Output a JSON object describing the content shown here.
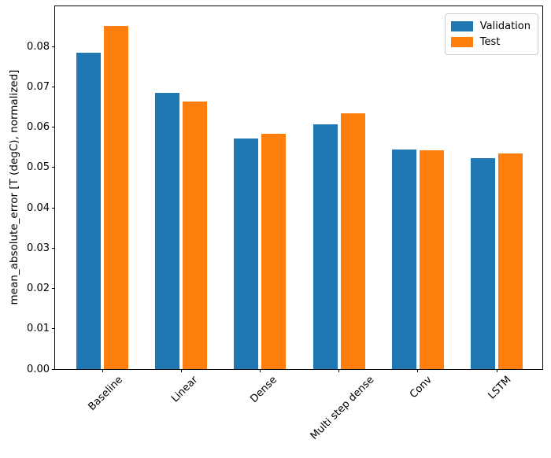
{
  "chart_data": {
    "type": "bar",
    "title": "",
    "xlabel": "",
    "ylabel": "mean_absolute_error [T (degC), normalized]",
    "categories": [
      "Baseline",
      "Linear",
      "Dense",
      "Multi step dense",
      "Conv",
      "LSTM"
    ],
    "series": [
      {
        "name": "Validation",
        "color": "#1f77b4",
        "values": [
          0.0785,
          0.0686,
          0.0573,
          0.0607,
          0.0545,
          0.0524
        ]
      },
      {
        "name": "Test",
        "color": "#ff7f0e",
        "values": [
          0.0852,
          0.0663,
          0.0584,
          0.0634,
          0.0543,
          0.0534
        ]
      }
    ],
    "ylim": [
      0,
      0.09
    ],
    "yticks": [
      0.0,
      0.01,
      0.02,
      0.03,
      0.04,
      0.05,
      0.06,
      0.07,
      0.08
    ],
    "ytick_labels": [
      "0.00",
      "0.01",
      "0.02",
      "0.03",
      "0.04",
      "0.05",
      "0.06",
      "0.07",
      "0.08"
    ],
    "x_tick_rotation": 45,
    "grid": false,
    "legend": {
      "position": "upper right",
      "entries": [
        "Validation",
        "Test"
      ]
    },
    "colors": {
      "spine": "#000000",
      "background": "#ffffff",
      "legend_border": "#cccccc"
    }
  }
}
